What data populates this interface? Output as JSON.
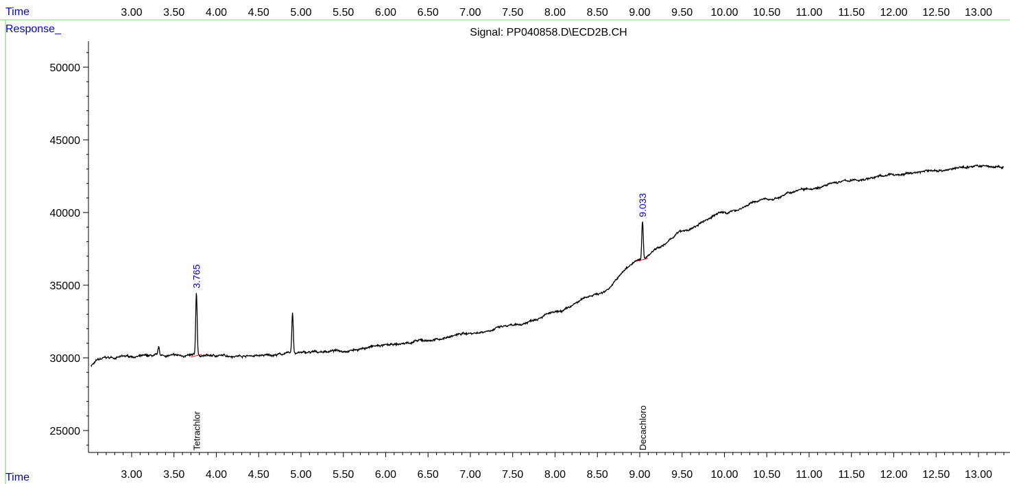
{
  "header": {
    "time_label": "Time",
    "response_label": "Response_",
    "signal_title": "Signal: PP040858.D\\ECD2B.CH"
  },
  "footer": {
    "time_label": "Time"
  },
  "colors": {
    "axis_text": "#0000cc",
    "frame": "#66dd66",
    "trace": "#000000",
    "peak_label": "#0000cc",
    "baseline_mark": "#ff0000"
  },
  "chart_data": {
    "type": "line",
    "title": "Signal: PP040858.D\\ECD2B.CH",
    "xlabel": "Time",
    "ylabel": "Response_",
    "xlim": [
      2.5,
      13.3
    ],
    "ylim": [
      23000,
      52000
    ],
    "x_ticks": [
      3.0,
      3.5,
      4.0,
      4.5,
      5.0,
      5.5,
      6.0,
      6.5,
      7.0,
      7.5,
      8.0,
      8.5,
      9.0,
      9.5,
      10.0,
      10.5,
      11.0,
      11.5,
      12.0,
      12.5,
      13.0
    ],
    "x_tick_labels": [
      "3.00",
      "3.50",
      "4.00",
      "4.50",
      "5.00",
      "5.50",
      "6.00",
      "6.50",
      "7.00",
      "7.50",
      "8.00",
      "8.50",
      "9.00",
      "9.50",
      "10.00",
      "10.50",
      "11.00",
      "11.50",
      "12.00",
      "12.50",
      "13.00"
    ],
    "y_ticks": [
      25000,
      30000,
      35000,
      40000,
      45000,
      50000
    ],
    "y_tick_labels": [
      "25000",
      "30000",
      "35000",
      "40000",
      "45000",
      "50000"
    ],
    "baseline": [
      {
        "x": 2.5,
        "y": 29400
      },
      {
        "x": 2.55,
        "y": 29600
      },
      {
        "x": 2.6,
        "y": 29850
      },
      {
        "x": 2.7,
        "y": 30000
      },
      {
        "x": 3.0,
        "y": 30100
      },
      {
        "x": 3.5,
        "y": 30150
      },
      {
        "x": 4.0,
        "y": 30150
      },
      {
        "x": 4.5,
        "y": 30150
      },
      {
        "x": 5.0,
        "y": 30350
      },
      {
        "x": 5.5,
        "y": 30500
      },
      {
        "x": 6.0,
        "y": 30850
      },
      {
        "x": 6.5,
        "y": 31200
      },
      {
        "x": 7.0,
        "y": 31700
      },
      {
        "x": 7.5,
        "y": 32200
      },
      {
        "x": 8.0,
        "y": 33100
      },
      {
        "x": 8.5,
        "y": 34400
      },
      {
        "x": 9.0,
        "y": 36700
      },
      {
        "x": 9.25,
        "y": 37700
      },
      {
        "x": 9.5,
        "y": 38700
      },
      {
        "x": 10.0,
        "y": 40000
      },
      {
        "x": 10.5,
        "y": 40900
      },
      {
        "x": 11.0,
        "y": 41700
      },
      {
        "x": 11.5,
        "y": 42200
      },
      {
        "x": 12.0,
        "y": 42600
      },
      {
        "x": 12.5,
        "y": 42900
      },
      {
        "x": 13.0,
        "y": 43200
      },
      {
        "x": 13.3,
        "y": 43100
      }
    ],
    "peaks": [
      {
        "x": 3.32,
        "height": 30700,
        "label": ""
      },
      {
        "x": 3.765,
        "height": 34500,
        "label": "3.765"
      },
      {
        "x": 4.9,
        "height": 33100,
        "label": ""
      },
      {
        "x": 9.033,
        "height": 39400,
        "label": "9.033"
      }
    ],
    "compounds": [
      {
        "x": 3.765,
        "name": "Tetrachlor"
      },
      {
        "x": 9.033,
        "name": "Decachloro"
      }
    ]
  }
}
